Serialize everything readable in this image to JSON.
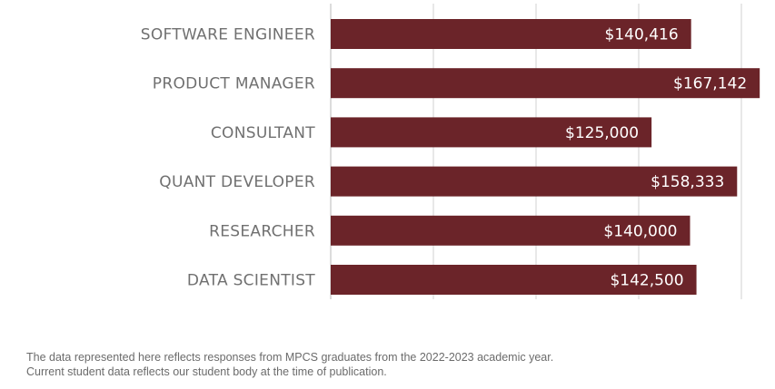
{
  "chart_data": {
    "type": "bar",
    "orientation": "horizontal",
    "title": "",
    "xlabel": "",
    "ylabel": "",
    "categories": [
      "SOFTWARE ENGINEER",
      "PRODUCT MANAGER",
      "CONSULTANT",
      "QUANT DEVELOPER",
      "RESEARCHER",
      "DATA SCIENTIST"
    ],
    "values": [
      140416,
      167142,
      125000,
      158333,
      140000,
      142500
    ],
    "value_labels": [
      "$140,416",
      "$167,142",
      "$125,000",
      "$158,333",
      "$140,000",
      "$142,500"
    ],
    "xlim": [
      0,
      160000
    ],
    "gridlines": [
      0,
      40000,
      80000,
      120000,
      160000
    ],
    "grid": true,
    "tick_labels_visible": false,
    "bar_color": "#6b2429",
    "grid_color": "#d0d0d0"
  },
  "footnote": {
    "line1": "The data represented here reflects responses from MPCS graduates from the 2022-2023 academic year.",
    "line2": "Current student data reflects our student body at the time of publication."
  }
}
